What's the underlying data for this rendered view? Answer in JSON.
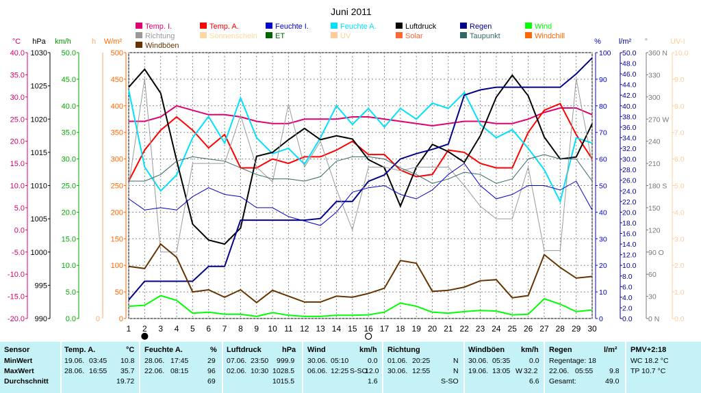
{
  "chart_data": {
    "type": "line",
    "title": "Juni 2011",
    "x": [
      1,
      2,
      3,
      4,
      5,
      6,
      7,
      8,
      9,
      10,
      11,
      12,
      13,
      14,
      15,
      16,
      17,
      18,
      19,
      20,
      21,
      22,
      23,
      24,
      25,
      26,
      27,
      28,
      29,
      30
    ],
    "xlim": [
      1,
      30
    ],
    "legend": [
      {
        "label": "Temp. I.",
        "color": "#e0006f"
      },
      {
        "label": "Temp. A.",
        "color": "#ff0000"
      },
      {
        "label": "Feuchte I.",
        "color": "#0000c8"
      },
      {
        "label": "Feuchte A.",
        "color": "#00e0ff"
      },
      {
        "label": "Luftdruck",
        "color": "#000000"
      },
      {
        "label": "Regen",
        "color": "#00008b"
      },
      {
        "label": "Wind",
        "color": "#00ff00"
      },
      {
        "label": "Richtung",
        "color": "#999999"
      },
      {
        "label": "Sonnenschein",
        "color": "#ffd8a0"
      },
      {
        "label": "ET",
        "color": "#006400"
      },
      {
        "label": "UV",
        "color": "#ffcc99"
      },
      {
        "label": "Solar",
        "color": "#ff6633"
      },
      {
        "label": "Taupunkt",
        "color": "#336666"
      },
      {
        "label": "Windchill",
        "color": "#ff6600"
      },
      {
        "label": "Windböen",
        "color": "#663300"
      }
    ],
    "axes": {
      "temp": {
        "unit": "°C",
        "ticks": [
          "40.0",
          "35.0",
          "30.0",
          "25.0",
          "20.0",
          "15.0",
          "10.0",
          "5.0",
          "0.0",
          "-5.0",
          "-10.0",
          "-15.0",
          "-20.0"
        ],
        "range": [
          -20,
          40
        ]
      },
      "pressure": {
        "unit": "hPa",
        "ticks": [
          "1030",
          "1025",
          "1020",
          "1015",
          "1010",
          "1005",
          "1000",
          "995",
          "990"
        ],
        "range": [
          990,
          1030
        ]
      },
      "wind": {
        "unit": "km/h",
        "ticks": [
          "50.0",
          "45.0",
          "40.0",
          "35.0",
          "30.0",
          "25.0",
          "20.0",
          "15.0",
          "10.0",
          "5.0",
          "0.0"
        ],
        "range": [
          0,
          50
        ]
      },
      "sun": {
        "unit": "h",
        "ticks": [
          "0"
        ]
      },
      "solar": {
        "unit": "W/m²",
        "ticks": [
          "500",
          "450",
          "400",
          "350",
          "300",
          "250",
          "200",
          "150",
          "100",
          "50",
          "0"
        ],
        "range": [
          0,
          500
        ]
      },
      "humidity": {
        "unit": "%",
        "ticks": [
          "100",
          "90",
          "80",
          "70",
          "60",
          "50",
          "40",
          "30",
          "20",
          "10",
          "0"
        ],
        "range": [
          0,
          100
        ]
      },
      "rain": {
        "unit": "l/m²",
        "ticks": [
          "50.0",
          "48.0",
          "46.0",
          "44.0",
          "42.0",
          "40.0",
          "38.0",
          "36.0",
          "34.0",
          "32.0",
          "30.0",
          "28.0",
          "26.0",
          "24.0",
          "22.0",
          "20.0",
          "18.0",
          "16.0",
          "14.0",
          "12.0",
          "10.0",
          "8.0",
          "6.0",
          "4.0",
          "2.0",
          "0.0"
        ],
        "range": [
          0,
          50
        ]
      },
      "direction": {
        "unit": "°",
        "ticks": [
          "360 N",
          "330",
          "300",
          "270 W",
          "240",
          "210",
          "180 S",
          "150",
          "120",
          "90 O",
          "60",
          "30",
          "0 N"
        ],
        "range": [
          0,
          360
        ]
      },
      "uv": {
        "unit": "UV-I",
        "ticks": [
          "10.0",
          "9.0",
          "8.0",
          "7.0",
          "6.0",
          "5.0",
          "4.0",
          "3.0",
          "2.0",
          "1.0",
          "0.0"
        ],
        "range": [
          0,
          10
        ]
      }
    },
    "series": [
      {
        "name": "Temp. I.",
        "color": "#e0006f",
        "axis": "temp",
        "values": [
          24.5,
          24.5,
          25.5,
          28.0,
          27.0,
          26.0,
          26.0,
          25.5,
          24.5,
          24.0,
          24.0,
          25.0,
          25.0,
          25.0,
          25.5,
          25.5,
          25.0,
          24.5,
          24.0,
          23.5,
          24.0,
          24.5,
          24.5,
          24.0,
          24.0,
          25.0,
          26.5,
          27.5,
          27.5,
          26.0
        ]
      },
      {
        "name": "Temp. A.",
        "color": "#ff0000",
        "axis": "temp",
        "values": [
          11.0,
          18.0,
          22.5,
          25.5,
          22.5,
          18.5,
          21.5,
          14.0,
          14.0,
          16.0,
          15.0,
          16.5,
          16.5,
          18.0,
          20.0,
          17.0,
          17.0,
          13.5,
          12.0,
          12.5,
          18.0,
          17.5,
          15.0,
          14.0,
          14.0,
          22.0,
          27.0,
          28.5,
          21.5,
          16.0
        ]
      },
      {
        "name": "Feuchte A.",
        "color": "#00e0ff",
        "axis": "humidity",
        "values": [
          86,
          57,
          48,
          54,
          68,
          76,
          66,
          83,
          68,
          62,
          64,
          58,
          68,
          80,
          73,
          79,
          72,
          79,
          75,
          81,
          79,
          85,
          73,
          68,
          71,
          64,
          56,
          44,
          68,
          66
        ]
      },
      {
        "name": "Luftdruck",
        "color": "#000000",
        "axis": "pressure",
        "values": [
          1024.8,
          1027.5,
          1023.9,
          1013.8,
          1004.2,
          1001.8,
          1001.2,
          1003.6,
          1014.4,
          1015.0,
          1016.9,
          1018.6,
          1016.9,
          1017.5,
          1017.0,
          1013.9,
          1012.7,
          1006.9,
          1012.8,
          1016.2,
          1015.1,
          1013.5,
          1017.5,
          1023.3,
          1026.6,
          1023.5,
          1017.3,
          1014.0,
          1014.3,
          1019.3
        ]
      },
      {
        "name": "Regen",
        "color": "#00008b",
        "axis": "rain",
        "values": [
          3.5,
          7.0,
          7.0,
          7.0,
          7.0,
          9.8,
          9.8,
          18.5,
          18.5,
          18.5,
          18.5,
          18.5,
          18.8,
          22.0,
          22.0,
          25.8,
          27.0,
          30.0,
          31.0,
          31.8,
          32.8,
          42.0,
          43.0,
          43.5,
          43.5,
          43.5,
          43.5,
          43.5,
          46.0,
          49.0
        ]
      },
      {
        "name": "Wind",
        "color": "#00ff00",
        "axis": "wind",
        "values": [
          2.3,
          2.5,
          4.3,
          3.4,
          1.0,
          1.2,
          0.8,
          0.8,
          0.4,
          1.1,
          0.6,
          0.4,
          0.4,
          0.6,
          0.6,
          0.7,
          1.2,
          2.9,
          2.3,
          1.2,
          1.0,
          1.3,
          1.5,
          1.4,
          0.7,
          0.8,
          3.7,
          2.7,
          1.3,
          1.6
        ]
      },
      {
        "name": "Richtung",
        "color": "#999999",
        "axis": "direction",
        "values": [
          180,
          325,
          90,
          90,
          210,
          210,
          210,
          275,
          205,
          185,
          290,
          205,
          240,
          175,
          120,
          205,
          205,
          200,
          205,
          205,
          205,
          180,
          152,
          135,
          135,
          205,
          92,
          92,
          325,
          210
        ]
      },
      {
        "name": "Taupunkt",
        "color": "#336666",
        "axis": "temp",
        "values": [
          11.0,
          11.0,
          12.5,
          15.5,
          16.5,
          16.0,
          15.5,
          14.0,
          12.5,
          11.5,
          11.5,
          11.0,
          12.0,
          15.5,
          16.5,
          16.5,
          16.0,
          14.0,
          12.5,
          10.5,
          11.5,
          13.0,
          12.5,
          10.5,
          11.5,
          16.0,
          17.0,
          16.0,
          16.0,
          11.0
        ]
      },
      {
        "name": "Feuchte I.",
        "color": "#0000c8",
        "axis": "temp",
        "values": [
          7.0,
          4.5,
          5.0,
          4.5,
          7.5,
          9.5,
          8.0,
          7.5,
          5.0,
          5.0,
          3.0,
          2.0,
          1.0,
          4.0,
          8.5,
          9.5,
          10.0,
          8.0,
          7.0,
          9.0,
          12.5,
          15.0,
          10.0,
          7.0,
          8.0,
          10.0,
          10.0,
          9.0,
          11.0,
          4.5
        ]
      },
      {
        "name": "Windböen",
        "color": "#663300",
        "axis": "wind",
        "values": [
          9.8,
          9.4,
          14.0,
          11.5,
          5.0,
          5.4,
          4.0,
          5.4,
          3.0,
          5.3,
          4.2,
          3.1,
          3.1,
          4.2,
          4.0,
          4.7,
          5.7,
          10.9,
          10.4,
          5.1,
          5.3,
          5.9,
          7.1,
          7.3,
          3.9,
          4.3,
          12.0,
          9.6,
          7.6,
          7.9
        ]
      }
    ],
    "moon_markers": [
      {
        "day": 2,
        "phase": "new"
      },
      {
        "day": 16,
        "phase": "full"
      }
    ]
  },
  "summary": {
    "sensor": {
      "header": "Sensor",
      "rows": [
        "MinWert",
        "MaxWert",
        "Durchschnitt"
      ]
    },
    "temp": {
      "header": "Temp. A.",
      "unit": "°C",
      "min": {
        "date": "19.06.",
        "time": "03:45",
        "value": "10.8"
      },
      "max": {
        "date": "28.06.",
        "time": "16:55",
        "value": "35.7"
      },
      "avg": "19.72"
    },
    "humidity": {
      "header": "Feuchte A.",
      "unit": "%",
      "min": {
        "date": "28.06.",
        "time": "17:45",
        "value": "29"
      },
      "max": {
        "date": "22.06.",
        "time": "08:15",
        "value": "96"
      },
      "avg": "69"
    },
    "pressure": {
      "header": "Luftdruck",
      "unit": "hPa",
      "min": {
        "date": "07.06.",
        "time": "23:50",
        "value": "999.9"
      },
      "max": {
        "date": "02.06.",
        "time": "10:30",
        "value": "1028.5"
      },
      "avg": "1015.5"
    },
    "wind": {
      "header": "Wind",
      "unit": "km/h",
      "min": {
        "date": "30.06.",
        "time": "05:10",
        "value": "0.0"
      },
      "max": {
        "date": "06.06.",
        "time": "12:25",
        "dir": "S-SO",
        "value": "12.0"
      },
      "avg": "1.6"
    },
    "direction": {
      "header": "Richtung",
      "min": {
        "date": "01.06.",
        "time": "20:25",
        "value": "N"
      },
      "max": {
        "date": "30.06.",
        "time": "12:55",
        "value": "N"
      },
      "avg": "S-SO"
    },
    "gusts": {
      "header": "Windböen",
      "unit": "km/h",
      "min": {
        "date": "30.06.",
        "time": "05:35",
        "value": "0.0"
      },
      "max": {
        "date": "19.06.",
        "time": "13:05",
        "dir": "W",
        "value": "32.2"
      },
      "avg": "6.6"
    },
    "rain": {
      "header": "Regen",
      "unit": "l/m²",
      "line1": "Regentage: 18",
      "line2_date": "22.06.",
      "line2_time": "05:55",
      "line2_value": "9.8",
      "line3": "Gesamt:",
      "line3_value": "49.0"
    },
    "pmv": {
      "header": "PMV+2:18",
      "wc": "WC 18.2 °C",
      "tp": "TP 10.7 °C"
    }
  }
}
